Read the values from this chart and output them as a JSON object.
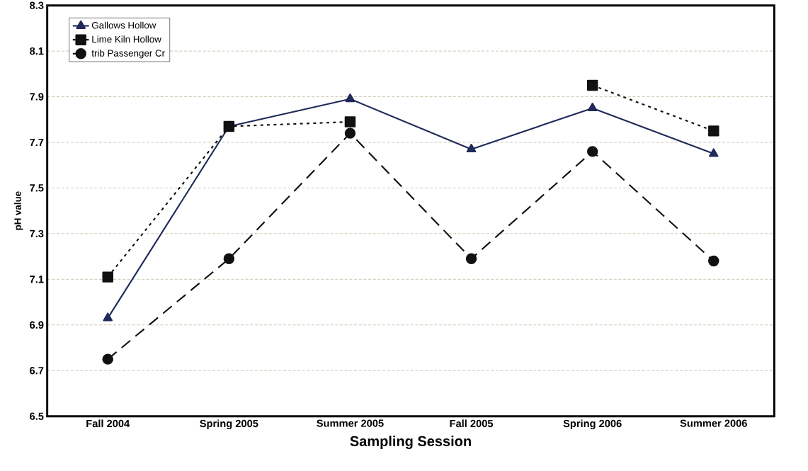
{
  "chart_data": {
    "type": "line",
    "xlabel": "Sampling Session",
    "ylabel": "pH value",
    "categories": [
      "Fall 2004",
      "Spring 2005",
      "Summer 2005",
      "Fall 2005",
      "Spring 2006",
      "Summer 2006"
    ],
    "series": [
      {
        "name": "Gallows Hollow",
        "color": "#1f2a5a",
        "marker": "triangle",
        "line_style": "solid",
        "values": [
          6.93,
          7.77,
          7.89,
          7.67,
          7.85,
          7.65
        ]
      },
      {
        "name": "Lime Kiln Hollow",
        "color": "#111111",
        "marker": "square",
        "line_style": "dotted",
        "values": [
          7.11,
          7.77,
          7.79,
          null,
          7.95,
          7.75
        ]
      },
      {
        "name": "trib Passenger Cr",
        "color": "#111111",
        "marker": "circle",
        "line_style": "dashed",
        "values": [
          6.75,
          7.19,
          7.74,
          7.19,
          7.66,
          7.18
        ]
      }
    ],
    "ylim": [
      6.5,
      8.3
    ],
    "yticks": [
      6.5,
      6.7,
      6.9,
      7.1,
      7.3,
      7.5,
      7.7,
      7.9,
      8.1,
      8.3
    ],
    "grid": "y",
    "legend": "top left"
  }
}
